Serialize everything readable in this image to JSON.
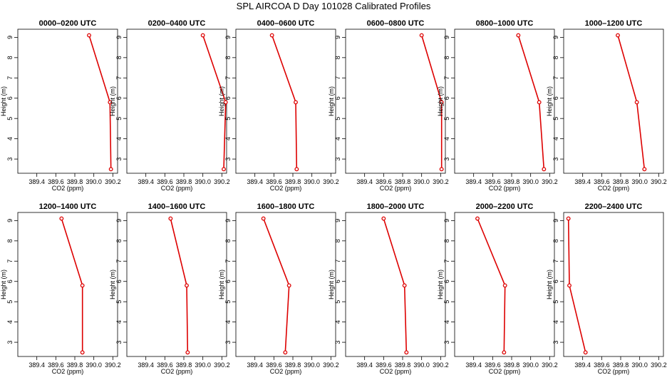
{
  "title": "SPL AIRCOA D  Day 101028  Calibrated Profiles",
  "colors": {
    "series": "#dd0000",
    "axis": "#000000",
    "background": "#ffffff"
  },
  "chart_data": [
    {
      "type": "line",
      "title": "0000–0200 UTC",
      "xlabel": "CO2 (ppm)",
      "ylabel": "Height (m)",
      "xlim": [
        389.2,
        390.25
      ],
      "ylim": [
        2.3,
        9.4
      ],
      "x_ticks": [
        "389.4",
        "389.6",
        "389.8",
        "390.0",
        "390.2"
      ],
      "y_ticks": [
        "3",
        "4",
        "5",
        "6",
        "7",
        "8",
        "9"
      ],
      "grid": false,
      "x": [
        389.95,
        390.17,
        390.18
      ],
      "y": [
        9.1,
        5.8,
        2.5
      ]
    },
    {
      "type": "line",
      "title": "0200–0400 UTC",
      "xlabel": "CO2 (ppm)",
      "ylabel": "Height (m)",
      "xlim": [
        389.2,
        390.25
      ],
      "ylim": [
        2.3,
        9.4
      ],
      "x_ticks": [
        "389.4",
        "389.6",
        "389.8",
        "390.0",
        "390.2"
      ],
      "y_ticks": [
        "3",
        "4",
        "5",
        "6",
        "7",
        "8",
        "9"
      ],
      "grid": false,
      "x": [
        390.0,
        390.24,
        390.22
      ],
      "y": [
        9.1,
        5.8,
        2.5
      ]
    },
    {
      "type": "line",
      "title": "0400–0600 UTC",
      "xlabel": "CO2 (ppm)",
      "ylabel": "Height (m)",
      "xlim": [
        389.2,
        390.25
      ],
      "ylim": [
        2.3,
        9.4
      ],
      "x_ticks": [
        "389.4",
        "389.6",
        "389.8",
        "390.0",
        "390.2"
      ],
      "y_ticks": [
        "3",
        "4",
        "5",
        "6",
        "7",
        "8",
        "9"
      ],
      "grid": false,
      "x": [
        389.58,
        389.83,
        389.84
      ],
      "y": [
        9.1,
        5.8,
        2.5
      ]
    },
    {
      "type": "line",
      "title": "0600–0800 UTC",
      "xlabel": "CO2 (ppm)",
      "ylabel": "Height (m)",
      "xlim": [
        389.2,
        390.25
      ],
      "ylim": [
        2.3,
        9.4
      ],
      "x_ticks": [
        "389.4",
        "389.6",
        "389.8",
        "390.0",
        "390.2"
      ],
      "y_ticks": [
        "3",
        "4",
        "5",
        "6",
        "7",
        "8",
        "9"
      ],
      "grid": false,
      "x": [
        390.0,
        390.21,
        390.21
      ],
      "y": [
        9.1,
        5.8,
        2.5
      ]
    },
    {
      "type": "line",
      "title": "0800–1000 UTC",
      "xlabel": "CO2 (ppm)",
      "ylabel": "Height (m)",
      "xlim": [
        389.2,
        390.25
      ],
      "ylim": [
        2.3,
        9.4
      ],
      "x_ticks": [
        "389.4",
        "389.6",
        "389.8",
        "390.0",
        "390.2"
      ],
      "y_ticks": [
        "3",
        "4",
        "5",
        "6",
        "7",
        "8",
        "9"
      ],
      "grid": false,
      "x": [
        389.87,
        390.09,
        390.14
      ],
      "y": [
        9.1,
        5.8,
        2.5
      ]
    },
    {
      "type": "line",
      "title": "1000–1200 UTC",
      "xlabel": "CO2 (ppm)",
      "ylabel": "Height (m)",
      "xlim": [
        389.2,
        390.25
      ],
      "ylim": [
        2.3,
        9.4
      ],
      "x_ticks": [
        "389.4",
        "389.6",
        "389.8",
        "390.0",
        "390.2"
      ],
      "y_ticks": [
        "3",
        "4",
        "5",
        "6",
        "7",
        "8",
        "9"
      ],
      "grid": false,
      "x": [
        389.77,
        389.97,
        390.05
      ],
      "y": [
        9.1,
        5.8,
        2.5
      ]
    },
    {
      "type": "line",
      "title": "1200–1400 UTC",
      "xlabel": "CO2 (ppm)",
      "ylabel": "Height (m)",
      "xlim": [
        389.2,
        390.25
      ],
      "ylim": [
        2.3,
        9.4
      ],
      "x_ticks": [
        "389.4",
        "389.6",
        "389.8",
        "390.0",
        "390.2"
      ],
      "y_ticks": [
        "3",
        "4",
        "5",
        "6",
        "7",
        "8",
        "9"
      ],
      "grid": false,
      "x": [
        389.66,
        389.88,
        389.88
      ],
      "y": [
        9.1,
        5.8,
        2.5
      ]
    },
    {
      "type": "line",
      "title": "1400–1600 UTC",
      "xlabel": "CO2 (ppm)",
      "ylabel": "Height (m)",
      "xlim": [
        389.2,
        390.25
      ],
      "ylim": [
        2.3,
        9.4
      ],
      "x_ticks": [
        "389.4",
        "389.6",
        "389.8",
        "390.0",
        "390.2"
      ],
      "y_ticks": [
        "3",
        "4",
        "5",
        "6",
        "7",
        "8",
        "9"
      ],
      "grid": false,
      "x": [
        389.66,
        389.83,
        389.84
      ],
      "y": [
        9.1,
        5.8,
        2.5
      ]
    },
    {
      "type": "line",
      "title": "1600–1800 UTC",
      "xlabel": "CO2 (ppm)",
      "ylabel": "Height (m)",
      "xlim": [
        389.2,
        390.25
      ],
      "ylim": [
        2.3,
        9.4
      ],
      "x_ticks": [
        "389.4",
        "389.6",
        "389.8",
        "390.0",
        "390.2"
      ],
      "y_ticks": [
        "3",
        "4",
        "5",
        "6",
        "7",
        "8",
        "9"
      ],
      "grid": false,
      "x": [
        389.49,
        389.76,
        389.72
      ],
      "y": [
        9.1,
        5.8,
        2.5
      ]
    },
    {
      "type": "line",
      "title": "1800–2000 UTC",
      "xlabel": "CO2 (ppm)",
      "ylabel": "Height (m)",
      "xlim": [
        389.2,
        390.25
      ],
      "ylim": [
        2.3,
        9.4
      ],
      "x_ticks": [
        "389.4",
        "389.6",
        "389.8",
        "390.0",
        "390.2"
      ],
      "y_ticks": [
        "3",
        "4",
        "5",
        "6",
        "7",
        "8",
        "9"
      ],
      "grid": false,
      "x": [
        389.6,
        389.82,
        389.84
      ],
      "y": [
        9.1,
        5.8,
        2.5
      ]
    },
    {
      "type": "line",
      "title": "2000–2200 UTC",
      "xlabel": "CO2 (ppm)",
      "ylabel": "Height (m)",
      "xlim": [
        389.2,
        390.25
      ],
      "ylim": [
        2.3,
        9.4
      ],
      "x_ticks": [
        "389.4",
        "389.6",
        "389.8",
        "390.0",
        "390.2"
      ],
      "y_ticks": [
        "3",
        "4",
        "5",
        "6",
        "7",
        "8",
        "9"
      ],
      "grid": false,
      "x": [
        389.44,
        389.73,
        389.72
      ],
      "y": [
        9.1,
        5.8,
        2.5
      ]
    },
    {
      "type": "line",
      "title": "2200–2400 UTC",
      "xlabel": "CO2 (ppm)",
      "ylabel": "Height (m)",
      "xlim": [
        389.2,
        390.25
      ],
      "ylim": [
        2.3,
        9.4
      ],
      "x_ticks": [
        "389.4",
        "389.6",
        "389.8",
        "390.0",
        "390.2"
      ],
      "y_ticks": [
        "3",
        "4",
        "5",
        "6",
        "7",
        "8",
        "9"
      ],
      "grid": false,
      "x": [
        389.25,
        389.26,
        389.43
      ],
      "y": [
        9.1,
        5.8,
        2.5
      ]
    }
  ]
}
